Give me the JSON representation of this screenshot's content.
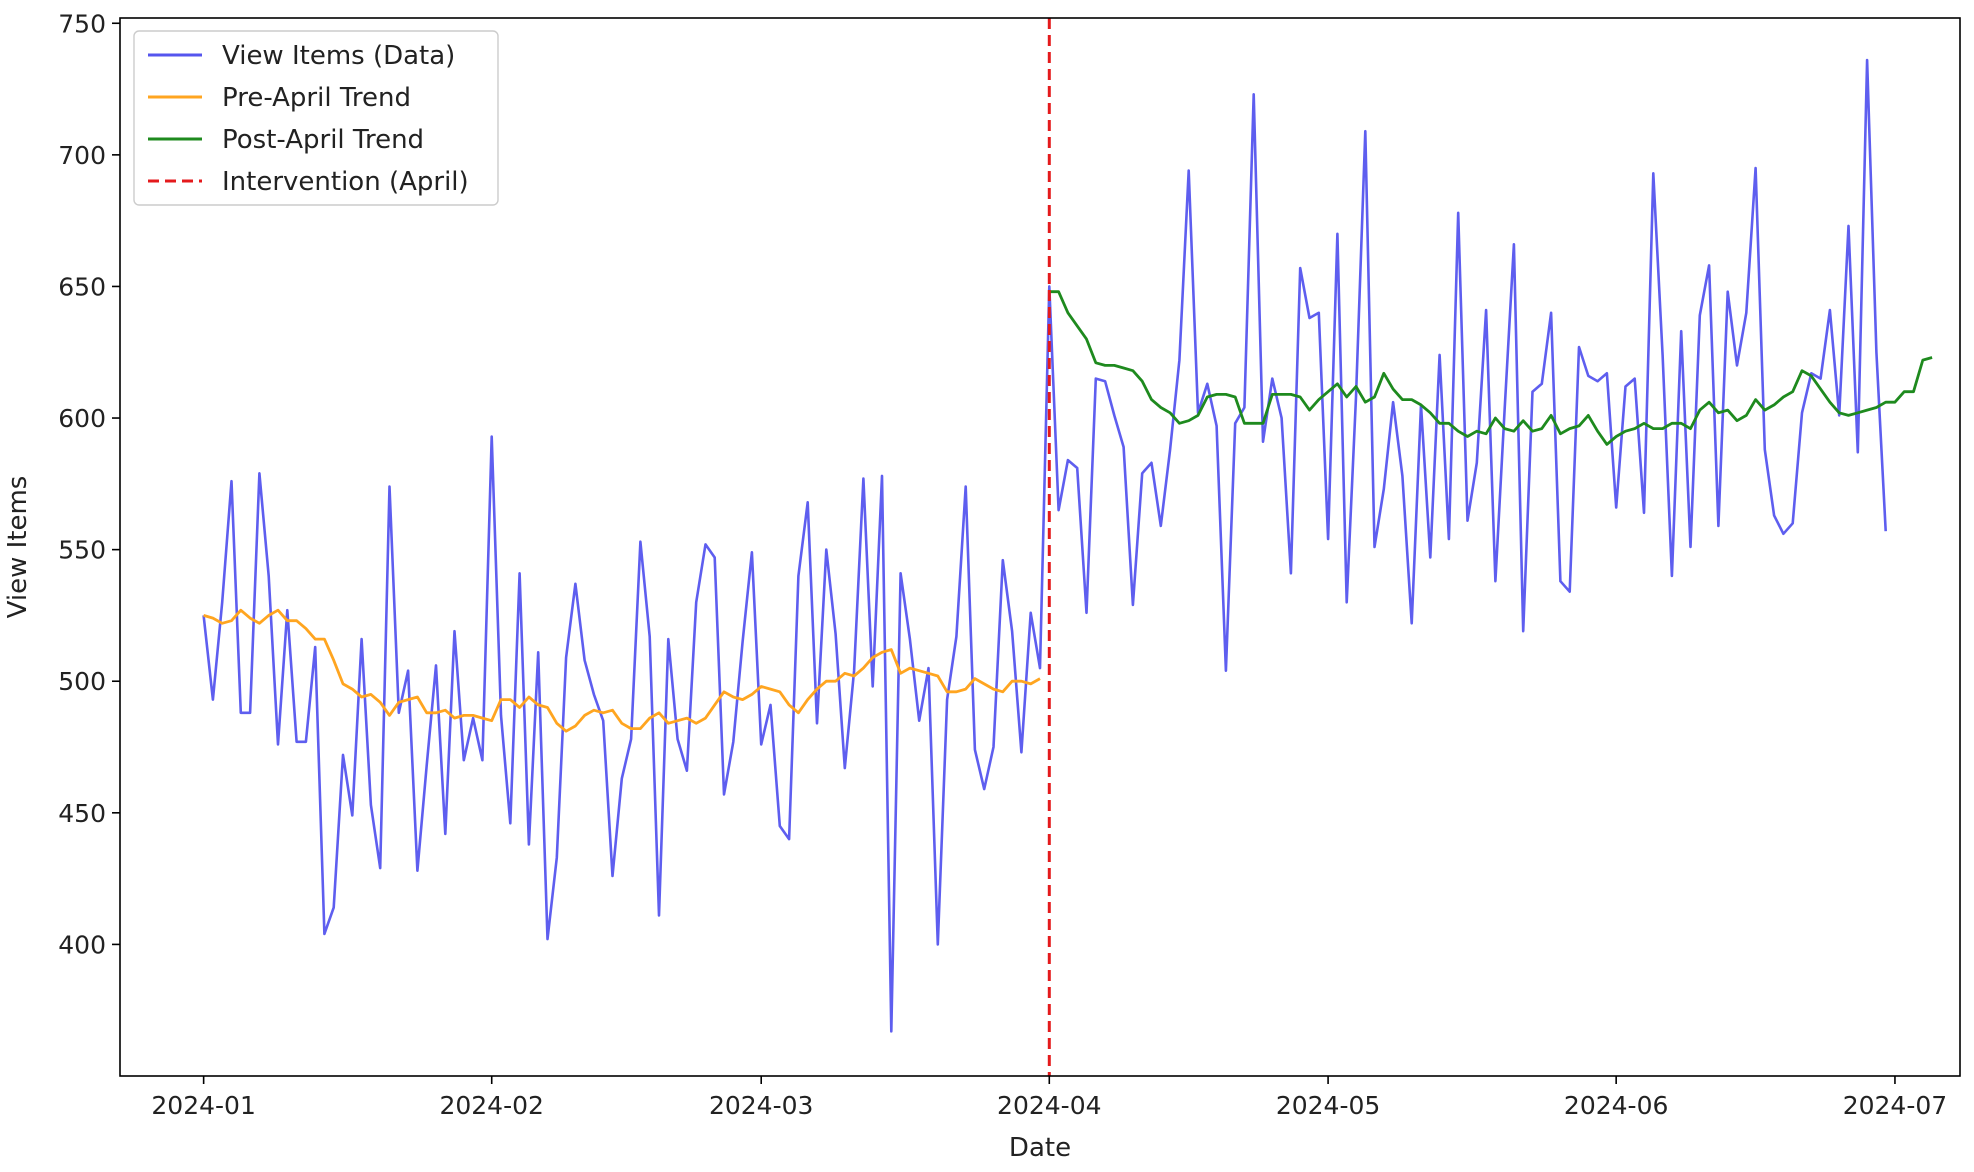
{
  "chart_data": {
    "type": "line",
    "title": "",
    "xlabel": "Date",
    "ylabel": "View Items",
    "x_ticks": [
      "2024-01",
      "2024-02",
      "2024-03",
      "2024-04",
      "2024-05",
      "2024-06",
      "2024-07"
    ],
    "y_ticks": [
      400,
      450,
      500,
      550,
      600,
      650,
      700,
      750
    ],
    "xlim": [
      "2023-12-23",
      "2024-07-08"
    ],
    "ylim": [
      350,
      752
    ],
    "grid": false,
    "legend_position": "upper-left",
    "intervention": {
      "name": "Intervention (April)",
      "date": "2024-04-01",
      "color": "#e41a1c"
    },
    "series": [
      {
        "name": "View Items (Data)",
        "color": "#5555ee",
        "start_date": "2024-01-01",
        "values": [
          525,
          493,
          530,
          576,
          488,
          488,
          579,
          540,
          476,
          527,
          477,
          477,
          513,
          404,
          414,
          472,
          449,
          516,
          453,
          429,
          574,
          488,
          504,
          428,
          468,
          506,
          442,
          519,
          470,
          486,
          470,
          593,
          487,
          446,
          541,
          438,
          511,
          402,
          433,
          509,
          537,
          508,
          495,
          485,
          426,
          463,
          478,
          553,
          517,
          411,
          516,
          478,
          466,
          530,
          552,
          547,
          457,
          477,
          515,
          549,
          476,
          491,
          445,
          440,
          540,
          568,
          484,
          550,
          518,
          467,
          504,
          577,
          498,
          578,
          367,
          541,
          516,
          485,
          505,
          400,
          493,
          517,
          574,
          474,
          459,
          475,
          546,
          519,
          473,
          526,
          505,
          650,
          565,
          584,
          581,
          526,
          615,
          614,
          601,
          589,
          529,
          579,
          583,
          559,
          588,
          622,
          694,
          602,
          613,
          597,
          504,
          598,
          604,
          723,
          591,
          615,
          600,
          541,
          657,
          638,
          640,
          554,
          670,
          530,
          608,
          709,
          551,
          573,
          606,
          578,
          522,
          605,
          547,
          624,
          554,
          678,
          561,
          583,
          641,
          538,
          603,
          666,
          519,
          610,
          613,
          640,
          538,
          534,
          627,
          616,
          614,
          617,
          566,
          612,
          615,
          564,
          693,
          624,
          540,
          633,
          551,
          639,
          658,
          559,
          648,
          620,
          640,
          695,
          588,
          563,
          556,
          560,
          602,
          617,
          615,
          641,
          601,
          673,
          587,
          736,
          625,
          557
        ]
      },
      {
        "name": "Pre-April Trend",
        "color": "#ffa520",
        "start_date": "2024-01-01",
        "values": [
          525,
          524,
          522,
          523,
          527,
          524,
          522,
          525,
          527,
          523,
          523,
          520,
          516,
          516,
          508,
          499,
          497,
          494,
          495,
          492,
          487,
          492,
          493,
          494,
          488,
          488,
          489,
          486,
          487,
          487,
          486,
          485,
          493,
          493,
          490,
          494,
          491,
          490,
          484,
          481,
          483,
          487,
          489,
          488,
          489,
          484,
          482,
          482,
          486,
          488,
          484,
          485,
          486,
          484,
          486,
          491,
          496,
          494,
          493,
          495,
          498,
          497,
          496,
          491,
          488,
          493,
          497,
          500,
          500,
          503,
          502,
          505,
          509,
          511,
          512,
          503,
          505,
          504,
          503,
          502,
          496,
          496,
          497,
          501,
          499,
          497,
          496,
          500,
          500,
          499,
          501
        ]
      },
      {
        "name": "Post-April Trend",
        "color": "#1e8a1e",
        "start_date": "2024-04-01",
        "values": [
          648,
          648,
          640,
          635,
          630,
          621,
          620,
          620,
          619,
          618,
          614,
          607,
          604,
          602,
          598,
          599,
          601,
          608,
          609,
          609,
          608,
          598,
          598,
          598,
          609,
          609,
          609,
          608,
          603,
          607,
          610,
          613,
          608,
          612,
          606,
          608,
          617,
          611,
          607,
          607,
          605,
          602,
          598,
          598,
          595,
          593,
          595,
          594,
          600,
          596,
          595,
          599,
          595,
          596,
          601,
          594,
          596,
          597,
          601,
          595,
          590,
          593,
          595,
          596,
          598,
          596,
          596,
          598,
          598,
          596,
          603,
          606,
          602,
          603,
          599,
          601,
          607,
          603,
          605,
          608,
          610,
          618,
          616,
          611,
          606,
          602,
          601,
          602,
          603,
          604,
          606,
          606,
          610,
          610,
          622,
          623
        ]
      }
    ]
  }
}
